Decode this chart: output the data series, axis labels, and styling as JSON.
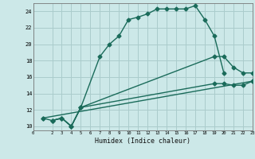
{
  "xlabel": "Humidex (Indice chaleur)",
  "bg_color": "#cce8e8",
  "grid_color": "#aacccc",
  "line_color": "#1a6b5a",
  "xlim": [
    0,
    23
  ],
  "ylim": [
    9.5,
    25
  ],
  "xticks": [
    0,
    2,
    3,
    4,
    5,
    6,
    7,
    8,
    9,
    10,
    11,
    12,
    13,
    14,
    15,
    16,
    17,
    18,
    19,
    20,
    21,
    22,
    23
  ],
  "yticks": [
    10,
    12,
    14,
    16,
    18,
    20,
    22,
    24
  ],
  "line1_x": [
    1,
    2,
    3,
    4,
    5,
    7,
    8,
    9,
    10,
    11,
    12,
    13,
    14,
    15,
    16,
    17,
    18,
    19,
    20
  ],
  "line1_y": [
    11,
    10.7,
    11,
    10,
    12.3,
    18.5,
    20,
    21,
    23,
    23.3,
    23.7,
    24.3,
    24.3,
    24.3,
    24.3,
    24.7,
    23,
    21,
    16.5
  ],
  "line2_x": [
    2,
    3,
    4,
    5,
    19,
    20,
    21,
    22,
    23
  ],
  "line2_y": [
    10.7,
    11,
    10,
    12.3,
    18.5,
    18.5,
    17.2,
    16.5,
    16.5
  ],
  "line3_x": [
    2,
    3,
    4,
    5,
    19,
    20,
    21,
    22,
    23
  ],
  "line3_y": [
    10.7,
    11,
    10,
    12.3,
    15.2,
    15.2,
    15.0,
    15.0,
    15.5
  ],
  "line4_x": [
    1,
    23
  ],
  "line4_y": [
    11,
    15.5
  ],
  "marker": "D",
  "markersize": 2.5,
  "linewidth": 1.0
}
